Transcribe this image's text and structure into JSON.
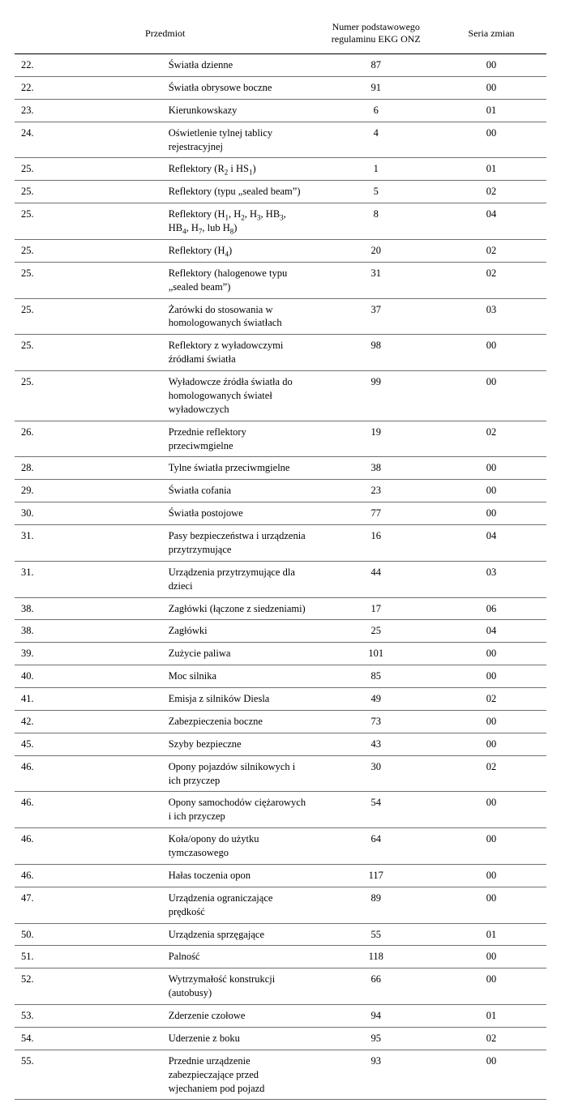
{
  "header": {
    "col_subject": "Przedmiot",
    "col_regnum": "Numer podstawowego regulaminu EKG ONZ",
    "col_series": "Seria zmian"
  },
  "colors": {
    "header_border": "#000000",
    "row_border": "#716f6f",
    "text": "#000000",
    "background": "#ffffff"
  },
  "typography": {
    "font_family": "Times New Roman, serif",
    "font_size_pt": 9,
    "header_font_size_pt": 9
  },
  "column_widths_pct": [
    58,
    22,
    20
  ],
  "rows": [
    {
      "n": "22.",
      "subject": "Światła dzienne",
      "reg": "87",
      "series": "00"
    },
    {
      "n": "22.",
      "subject": "Światła obrysowe boczne",
      "reg": "91",
      "series": "00"
    },
    {
      "n": "23.",
      "subject": "Kierunkowskazy",
      "reg": "6",
      "series": "01"
    },
    {
      "n": "24.",
      "subject": "Oświetlenie tylnej tablicy rejestracyjnej",
      "reg": "4",
      "series": "00"
    },
    {
      "n": "25.",
      "subject_html": "Reflektory (R<sub>2</sub> i HS<sub>1</sub>)",
      "reg": "1",
      "series": "01"
    },
    {
      "n": "25.",
      "subject": "Reflektory (typu „sealed beam”)",
      "reg": "5",
      "series": "02"
    },
    {
      "n": "25.",
      "subject_html": "Reflektory (H<sub>1</sub>, H<sub>2</sub>, H<sub>3</sub>, HB<sub>3</sub>, HB<sub>4</sub>, H<sub>7</sub>, lub H<sub>8</sub>)",
      "reg": "8",
      "series": "04"
    },
    {
      "n": "25.",
      "subject_html": "Reflektory (H<sub>4</sub>)",
      "reg": "20",
      "series": "02"
    },
    {
      "n": "25.",
      "subject": "Reflektory (halogenowe typu „sealed beam”)",
      "reg": "31",
      "series": "02"
    },
    {
      "n": "25.",
      "subject": "Żarówki do stosowania w homologowanych światłach",
      "reg": "37",
      "series": "03"
    },
    {
      "n": "25.",
      "subject": "Reflektory z wyładowczymi źródłami światła",
      "reg": "98",
      "series": "00"
    },
    {
      "n": "25.",
      "subject": "Wyładowcze źródła światła do homologowanych świateł wyładowczych",
      "reg": "99",
      "series": "00"
    },
    {
      "n": "26.",
      "subject": "Przednie reflektory przeciwmgielne",
      "reg": "19",
      "series": "02"
    },
    {
      "n": "28.",
      "subject": "Tylne światła przeciwmgielne",
      "reg": "38",
      "series": "00"
    },
    {
      "n": "29.",
      "subject": "Światła cofania",
      "reg": "23",
      "series": "00"
    },
    {
      "n": "30.",
      "subject": "Światła postojowe",
      "reg": "77",
      "series": "00"
    },
    {
      "n": "31.",
      "subject": "Pasy bezpieczeństwa i urządzenia przytrzymujące",
      "reg": "16",
      "series": "04"
    },
    {
      "n": "31.",
      "subject": "Urządzenia przytrzymujące dla dzieci",
      "reg": "44",
      "series": "03"
    },
    {
      "n": "38.",
      "subject": "Zagłówki (łączone z siedzeniami)",
      "reg": "17",
      "series": "06"
    },
    {
      "n": "38.",
      "subject": "Zagłówki",
      "reg": "25",
      "series": "04"
    },
    {
      "n": "39.",
      "subject": "Zużycie paliwa",
      "reg": "101",
      "series": "00"
    },
    {
      "n": "40.",
      "subject": "Moc silnika",
      "reg": "85",
      "series": "00"
    },
    {
      "n": "41.",
      "subject": "Emisja z silników Diesla",
      "reg": "49",
      "series": "02"
    },
    {
      "n": "42.",
      "subject": "Zabezpieczenia boczne",
      "reg": "73",
      "series": "00"
    },
    {
      "n": "45.",
      "subject": "Szyby bezpieczne",
      "reg": "43",
      "series": "00"
    },
    {
      "n": "46.",
      "subject": "Opony pojazdów silnikowych i ich przyczep",
      "reg": "30",
      "series": "02"
    },
    {
      "n": "46.",
      "subject": "Opony samochodów ciężarowych i ich przyczep",
      "reg": "54",
      "series": "00"
    },
    {
      "n": "46.",
      "subject": "Koła/opony do użytku tymczasowego",
      "reg": "64",
      "series": "00"
    },
    {
      "n": "46.",
      "subject": "Hałas toczenia opon",
      "reg": "117",
      "series": "00"
    },
    {
      "n": "47.",
      "subject": "Urządzenia ograniczające prędkość",
      "reg": "89",
      "series": "00"
    },
    {
      "n": "50.",
      "subject": "Urządzenia sprzęgające",
      "reg": "55",
      "series": "01"
    },
    {
      "n": "51.",
      "subject": "Palność",
      "reg": "118",
      "series": "00"
    },
    {
      "n": "52.",
      "subject": "Wytrzymałość konstrukcji (autobusy)",
      "reg": "66",
      "series": "00"
    },
    {
      "n": "53.",
      "subject": "Zderzenie czołowe",
      "reg": "94",
      "series": "01"
    },
    {
      "n": "54.",
      "subject": "Uderzenie z boku",
      "reg": "95",
      "series": "02"
    },
    {
      "n": "55.",
      "subject": "Przednie urządzenie zabezpieczające przed wjechaniem pod pojazd",
      "reg": "93",
      "series": "00"
    }
  ]
}
